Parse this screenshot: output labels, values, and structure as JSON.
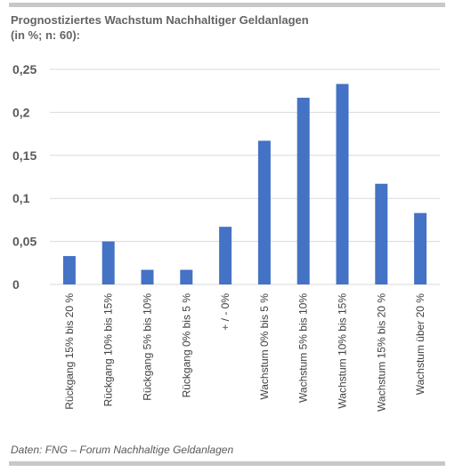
{
  "header": {
    "title_line1": "Prognostiziertes Wachstum Nachhaltiger Geldanlagen",
    "title_line2": "(in %; n: 60):"
  },
  "footer": {
    "source": "Daten: FNG – Forum Nachhaltige Geldanlagen"
  },
  "colors": {
    "bar": "#4472c4",
    "grid": "#d9d9d9",
    "rule": "#c8c8c8"
  },
  "chart_data": {
    "type": "bar",
    "title": "Prognostiziertes Wachstum Nachhaltiger Geldanlagen (in %; n: 60):",
    "xlabel": "",
    "ylabel": "",
    "ylim": [
      0,
      0.25
    ],
    "yticks": [
      0,
      0.05,
      0.1,
      0.15,
      0.2,
      0.25
    ],
    "ytick_labels": [
      "0",
      "0,05",
      "0,1",
      "0,15",
      "0,2",
      "0,25"
    ],
    "grid": true,
    "legend": "none",
    "categories": [
      "Rückgang 15% bis 20 %",
      "Rückgang 10% bis 15%",
      "Rückgang  5% bis 10%",
      "Rückgang 0% bis 5 %",
      "+ / - 0%",
      "Wachstum 0% bis 5 %",
      "Wachstum 5% bis 10%",
      "Wachstum 10% bis 15%",
      "Wachstum 15% bis 20 %",
      "Wachstum über 20 %"
    ],
    "values": [
      0.033,
      0.05,
      0.017,
      0.017,
      0.067,
      0.167,
      0.217,
      0.233,
      0.117,
      0.083
    ]
  }
}
